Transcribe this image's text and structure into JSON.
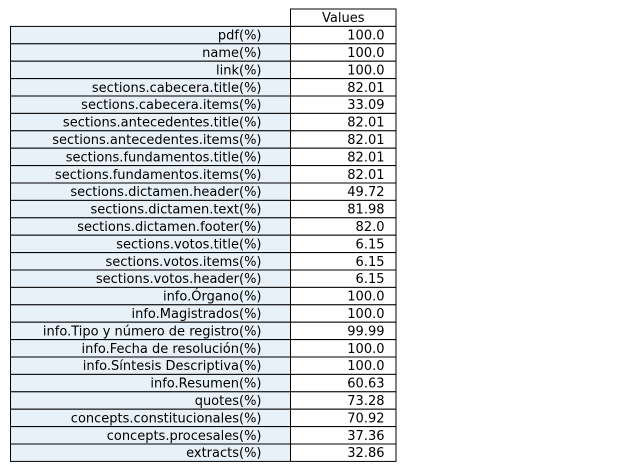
{
  "chart_data": {
    "type": "table",
    "columns": [
      "Values"
    ],
    "rows": [
      {
        "label": "pdf(%)",
        "value": "100.0"
      },
      {
        "label": "name(%)",
        "value": "100.0"
      },
      {
        "label": "link(%)",
        "value": "100.0"
      },
      {
        "label": "sections.cabecera.title(%)",
        "value": "82.01"
      },
      {
        "label": "sections.cabecera.items(%)",
        "value": "33.09"
      },
      {
        "label": "sections.antecedentes.title(%)",
        "value": "82.01"
      },
      {
        "label": "sections.antecedentes.items(%)",
        "value": "82.01"
      },
      {
        "label": "sections.fundamentos.title(%)",
        "value": "82.01"
      },
      {
        "label": "sections.fundamentos.items(%)",
        "value": "82.01"
      },
      {
        "label": "sections.dictamen.header(%)",
        "value": "49.72"
      },
      {
        "label": "sections.dictamen.text(%)",
        "value": "81.98"
      },
      {
        "label": "sections.dictamen.footer(%)",
        "value": "82.0"
      },
      {
        "label": "sections.votos.title(%)",
        "value": "6.15"
      },
      {
        "label": "sections.votos.items(%)",
        "value": "6.15"
      },
      {
        "label": "sections.votos.header(%)",
        "value": "6.15"
      },
      {
        "label": "info.Órgano(%)",
        "value": "100.0"
      },
      {
        "label": "info.Magistrados(%)",
        "value": "100.0"
      },
      {
        "label": "info.Tipo y número de registro(%)",
        "value": "99.99"
      },
      {
        "label": "info.Fecha de resolución(%)",
        "value": "100.0"
      },
      {
        "label": "info.Síntesis Descriptiva(%)",
        "value": "100.0"
      },
      {
        "label": "info.Resumen(%)",
        "value": "60.63"
      },
      {
        "label": "quotes(%)",
        "value": "73.28"
      },
      {
        "label": "concepts.constitucionales(%)",
        "value": "70.92"
      },
      {
        "label": "concepts.procesales(%)",
        "value": "37.36"
      },
      {
        "label": "extracts(%)",
        "value": "32.86"
      }
    ]
  },
  "colors": {
    "row_label_background": "#e8f1f8",
    "cell_background": "#ffffff",
    "border": "#000000",
    "text": "#000000"
  }
}
